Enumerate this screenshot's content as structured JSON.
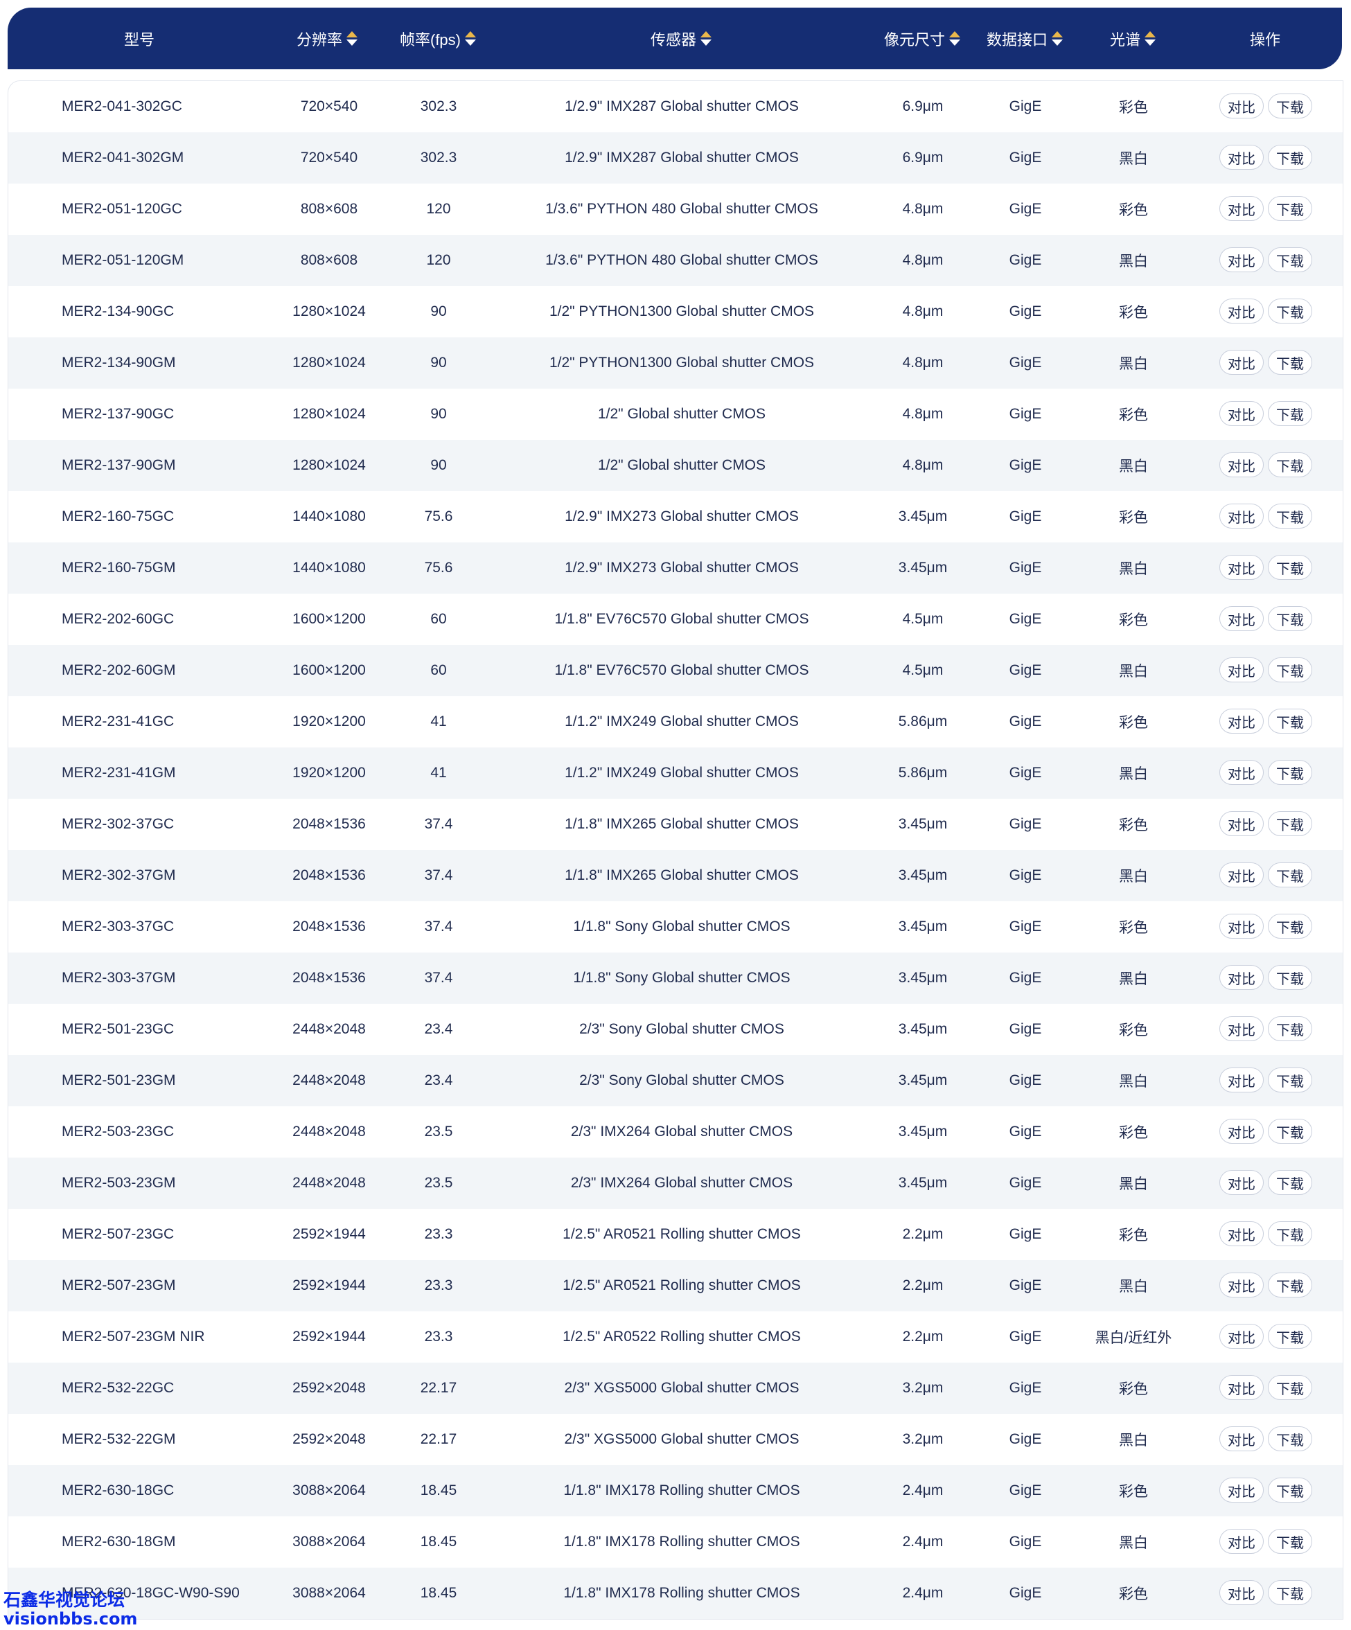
{
  "header": {
    "columns": [
      {
        "label": "型号",
        "sortable": false
      },
      {
        "label": "分辨率",
        "sortable": true
      },
      {
        "label": "帧率(fps)",
        "sortable": true
      },
      {
        "label": "传感器",
        "sortable": true
      },
      {
        "label": "像元尺寸",
        "sortable": true
      },
      {
        "label": "数据接口",
        "sortable": true
      },
      {
        "label": "光谱",
        "sortable": true
      },
      {
        "label": "操作",
        "sortable": false
      }
    ]
  },
  "actions": {
    "compare_label": "对比",
    "download_label": "下载"
  },
  "rows": [
    [
      "MER2-041-302GC",
      "720×540",
      "302.3",
      "1/2.9\" IMX287 Global shutter CMOS",
      "6.9μm",
      "GigE",
      "彩色"
    ],
    [
      "MER2-041-302GM",
      "720×540",
      "302.3",
      "1/2.9\" IMX287 Global shutter CMOS",
      "6.9μm",
      "GigE",
      "黑白"
    ],
    [
      "MER2-051-120GC",
      "808×608",
      "120",
      "1/3.6\" PYTHON 480 Global shutter CMOS",
      "4.8μm",
      "GigE",
      "彩色"
    ],
    [
      "MER2-051-120GM",
      "808×608",
      "120",
      "1/3.6\" PYTHON 480 Global shutter CMOS",
      "4.8μm",
      "GigE",
      "黑白"
    ],
    [
      "MER2-134-90GC",
      "1280×1024",
      "90",
      "1/2\" PYTHON1300 Global shutter CMOS",
      "4.8μm",
      "GigE",
      "彩色"
    ],
    [
      "MER2-134-90GM",
      "1280×1024",
      "90",
      "1/2\" PYTHON1300 Global shutter CMOS",
      "4.8μm",
      "GigE",
      "黑白"
    ],
    [
      "MER2-137-90GC",
      "1280×1024",
      "90",
      "1/2\" Global shutter CMOS",
      "4.8μm",
      "GigE",
      "彩色"
    ],
    [
      "MER2-137-90GM",
      "1280×1024",
      "90",
      "1/2\" Global shutter CMOS",
      "4.8μm",
      "GigE",
      "黑白"
    ],
    [
      "MER2-160-75GC",
      "1440×1080",
      "75.6",
      "1/2.9\" IMX273 Global shutter CMOS",
      "3.45μm",
      "GigE",
      "彩色"
    ],
    [
      "MER2-160-75GM",
      "1440×1080",
      "75.6",
      "1/2.9\" IMX273 Global shutter CMOS",
      "3.45μm",
      "GigE",
      "黑白"
    ],
    [
      "MER2-202-60GC",
      "1600×1200",
      "60",
      "1/1.8\" EV76C570 Global shutter CMOS",
      "4.5μm",
      "GigE",
      "彩色"
    ],
    [
      "MER2-202-60GM",
      "1600×1200",
      "60",
      "1/1.8\" EV76C570 Global shutter CMOS",
      "4.5μm",
      "GigE",
      "黑白"
    ],
    [
      "MER2-231-41GC",
      "1920×1200",
      "41",
      "1/1.2\" IMX249 Global shutter CMOS",
      "5.86μm",
      "GigE",
      "彩色"
    ],
    [
      "MER2-231-41GM",
      "1920×1200",
      "41",
      "1/1.2\" IMX249 Global shutter CMOS",
      "5.86μm",
      "GigE",
      "黑白"
    ],
    [
      "MER2-302-37GC",
      "2048×1536",
      "37.4",
      "1/1.8\" IMX265 Global shutter CMOS",
      "3.45μm",
      "GigE",
      "彩色"
    ],
    [
      "MER2-302-37GM",
      "2048×1536",
      "37.4",
      "1/1.8\" IMX265 Global shutter CMOS",
      "3.45μm",
      "GigE",
      "黑白"
    ],
    [
      "MER2-303-37GC",
      "2048×1536",
      "37.4",
      "1/1.8\" Sony Global shutter CMOS",
      "3.45μm",
      "GigE",
      "彩色"
    ],
    [
      "MER2-303-37GM",
      "2048×1536",
      "37.4",
      "1/1.8\" Sony Global shutter CMOS",
      "3.45μm",
      "GigE",
      "黑白"
    ],
    [
      "MER2-501-23GC",
      "2448×2048",
      "23.4",
      "2/3\" Sony Global shutter CMOS",
      "3.45μm",
      "GigE",
      "彩色"
    ],
    [
      "MER2-501-23GM",
      "2448×2048",
      "23.4",
      "2/3\" Sony Global shutter CMOS",
      "3.45μm",
      "GigE",
      "黑白"
    ],
    [
      "MER2-503-23GC",
      "2448×2048",
      "23.5",
      "2/3\" IMX264 Global shutter CMOS",
      "3.45μm",
      "GigE",
      "彩色"
    ],
    [
      "MER2-503-23GM",
      "2448×2048",
      "23.5",
      "2/3\" IMX264 Global shutter CMOS",
      "3.45μm",
      "GigE",
      "黑白"
    ],
    [
      "MER2-507-23GC",
      "2592×1944",
      "23.3",
      "1/2.5\" AR0521 Rolling shutter CMOS",
      "2.2μm",
      "GigE",
      "彩色"
    ],
    [
      "MER2-507-23GM",
      "2592×1944",
      "23.3",
      "1/2.5\" AR0521 Rolling shutter CMOS",
      "2.2μm",
      "GigE",
      "黑白"
    ],
    [
      "MER2-507-23GM NIR",
      "2592×1944",
      "23.3",
      "1/2.5\" AR0522 Rolling shutter CMOS",
      "2.2μm",
      "GigE",
      "黑白/近红外"
    ],
    [
      "MER2-532-22GC",
      "2592×2048",
      "22.17",
      "2/3\" XGS5000 Global shutter CMOS",
      "3.2μm",
      "GigE",
      "彩色"
    ],
    [
      "MER2-532-22GM",
      "2592×2048",
      "22.17",
      "2/3\" XGS5000 Global shutter CMOS",
      "3.2μm",
      "GigE",
      "黑白"
    ],
    [
      "MER2-630-18GC",
      "3088×2064",
      "18.45",
      "1/1.8\" IMX178 Rolling shutter CMOS",
      "2.4μm",
      "GigE",
      "彩色"
    ],
    [
      "MER2-630-18GM",
      "3088×2064",
      "18.45",
      "1/1.8\" IMX178 Rolling shutter CMOS",
      "2.4μm",
      "GigE",
      "黑白"
    ],
    [
      "MER2-630-18GC-W90-S90",
      "3088×2064",
      "18.45",
      "1/1.8\" IMX178 Rolling shutter CMOS",
      "2.4μm",
      "GigE",
      "彩色"
    ]
  ],
  "watermark": {
    "line1": "石鑫华视觉论坛",
    "line2": "visionbbs.com"
  },
  "colors": {
    "header_bg": "#152d73",
    "sort_up": "#e9b74b",
    "alt_row": "#f2f5f8",
    "watermark": "#0b2be6"
  }
}
